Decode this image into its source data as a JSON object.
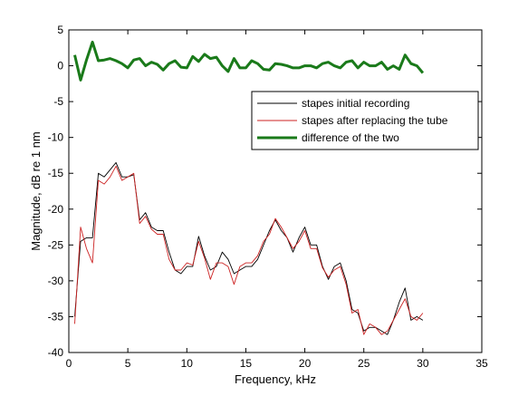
{
  "chart_data": {
    "type": "line",
    "title": "",
    "xlabel": "Frequency, kHz",
    "ylabel": "Magnitude, dB re 1 nm",
    "xlim": [
      0,
      35
    ],
    "ylim": [
      -40,
      5
    ],
    "xticks": [
      0,
      5,
      10,
      15,
      20,
      25,
      30,
      35
    ],
    "yticks": [
      5,
      0,
      -5,
      -10,
      -15,
      -20,
      -25,
      -30,
      -35,
      -40
    ],
    "grid": false,
    "legend_position": "upper-right",
    "series": [
      {
        "name": "stapes initial recording",
        "color": "#000000",
        "line_width": "thin",
        "x": [
          0.5,
          1,
          1.5,
          2,
          2.5,
          3,
          3.5,
          4,
          4.5,
          5,
          5.5,
          6,
          6.5,
          7,
          7.5,
          8,
          8.5,
          9,
          9.5,
          10,
          10.5,
          11,
          11.5,
          12,
          12.5,
          13,
          13.5,
          14,
          14.5,
          15,
          15.5,
          16,
          16.5,
          17,
          17.5,
          18,
          18.5,
          19,
          19.5,
          20,
          20.5,
          21,
          21.5,
          22,
          22.5,
          23,
          23.5,
          24,
          24.5,
          25,
          25.5,
          26,
          26.5,
          27,
          27.5,
          28,
          28.5,
          29,
          29.5,
          30
        ],
        "y": [
          -35.0,
          -24.5,
          -24.0,
          -24.0,
          -15.0,
          -15.5,
          -14.5,
          -13.5,
          -15.5,
          -15.5,
          -15.2,
          -21.5,
          -20.5,
          -22.5,
          -23.0,
          -23.0,
          -26.0,
          -28.5,
          -29.0,
          -28.0,
          -28.0,
          -23.8,
          -26.5,
          -28.5,
          -28.0,
          -26.0,
          -27.0,
          -29.0,
          -28.5,
          -28.0,
          -28.0,
          -27.0,
          -25.0,
          -23.0,
          -21.5,
          -23.0,
          -24.0,
          -26.0,
          -24.0,
          -22.5,
          -25.0,
          -25.0,
          -28.0,
          -29.8,
          -28.0,
          -27.5,
          -30.0,
          -34.0,
          -34.5,
          -37.0,
          -36.5,
          -36.5,
          -37.0,
          -37.5,
          -35.5,
          -33.0,
          -31.0,
          -35.5,
          -35.0,
          -35.5
        ]
      },
      {
        "name": "stapes after replacing the tube",
        "color": "#cc2222",
        "line_width": "thin",
        "x": [
          0.5,
          1,
          1.5,
          2,
          2.5,
          3,
          3.5,
          4,
          4.5,
          5,
          5.5,
          6,
          6.5,
          7,
          7.5,
          8,
          8.5,
          9,
          9.5,
          10,
          10.5,
          11,
          11.5,
          12,
          12.5,
          13,
          13.5,
          14,
          14.5,
          15,
          15.5,
          16,
          16.5,
          17,
          17.5,
          18,
          18.5,
          19,
          19.5,
          20,
          20.5,
          21,
          21.5,
          22,
          22.5,
          23,
          23.5,
          24,
          24.5,
          25,
          25.5,
          26,
          26.5,
          27,
          27.5,
          28,
          28.5,
          29,
          29.5,
          30
        ],
        "y": [
          -36.0,
          -22.5,
          -25.5,
          -27.5,
          -16.0,
          -16.5,
          -15.5,
          -14.0,
          -16.0,
          -15.5,
          -15.0,
          -22.0,
          -21.0,
          -22.8,
          -23.5,
          -23.5,
          -27.0,
          -28.5,
          -28.5,
          -27.5,
          -27.8,
          -24.5,
          -26.8,
          -29.8,
          -27.5,
          -27.5,
          -28.0,
          -30.5,
          -28.0,
          -27.5,
          -27.5,
          -26.5,
          -24.5,
          -23.5,
          -21.3,
          -22.5,
          -24.0,
          -25.5,
          -24.5,
          -23.0,
          -25.5,
          -25.5,
          -28.2,
          -29.5,
          -28.5,
          -28.0,
          -30.5,
          -34.5,
          -34.0,
          -37.5,
          -36.0,
          -36.5,
          -37.5,
          -37.0,
          -35.5,
          -34.0,
          -32.5,
          -35.0,
          -35.5,
          -34.5
        ]
      },
      {
        "name": "difference of the two",
        "color": "#1a7a1a",
        "line_width": "thick",
        "x": [
          0.5,
          1,
          1.5,
          2,
          2.5,
          3,
          3.5,
          4,
          4.5,
          5,
          5.5,
          6,
          6.5,
          7,
          7.5,
          8,
          8.5,
          9,
          9.5,
          10,
          10.5,
          11,
          11.5,
          12,
          12.5,
          13,
          13.5,
          14,
          14.5,
          15,
          15.5,
          16,
          16.5,
          17,
          17.5,
          18,
          18.5,
          19,
          19.5,
          20,
          20.5,
          21,
          21.5,
          22,
          22.5,
          23,
          23.5,
          24,
          24.5,
          25,
          25.5,
          26,
          26.5,
          27,
          27.5,
          28,
          28.5,
          29,
          29.5,
          30
        ],
        "y": [
          1.5,
          -2.0,
          0.8,
          3.3,
          0.7,
          0.8,
          1.0,
          0.7,
          0.3,
          -0.3,
          0.8,
          1.0,
          0.0,
          0.5,
          0.2,
          -0.6,
          0.3,
          0.7,
          -0.2,
          -0.3,
          1.3,
          0.6,
          1.6,
          1.0,
          1.2,
          0.0,
          -0.8,
          1.0,
          -0.3,
          -0.3,
          0.7,
          0.3,
          -0.5,
          -0.6,
          0.3,
          0.2,
          0.0,
          -0.3,
          -0.3,
          0.0,
          0.0,
          -0.3,
          0.3,
          0.5,
          0.0,
          -0.3,
          0.5,
          0.7,
          -0.3,
          0.5,
          0.0,
          0.0,
          0.5,
          -0.5,
          0.0,
          -0.5,
          1.5,
          0.3,
          0.0,
          -1.0
        ]
      }
    ]
  }
}
